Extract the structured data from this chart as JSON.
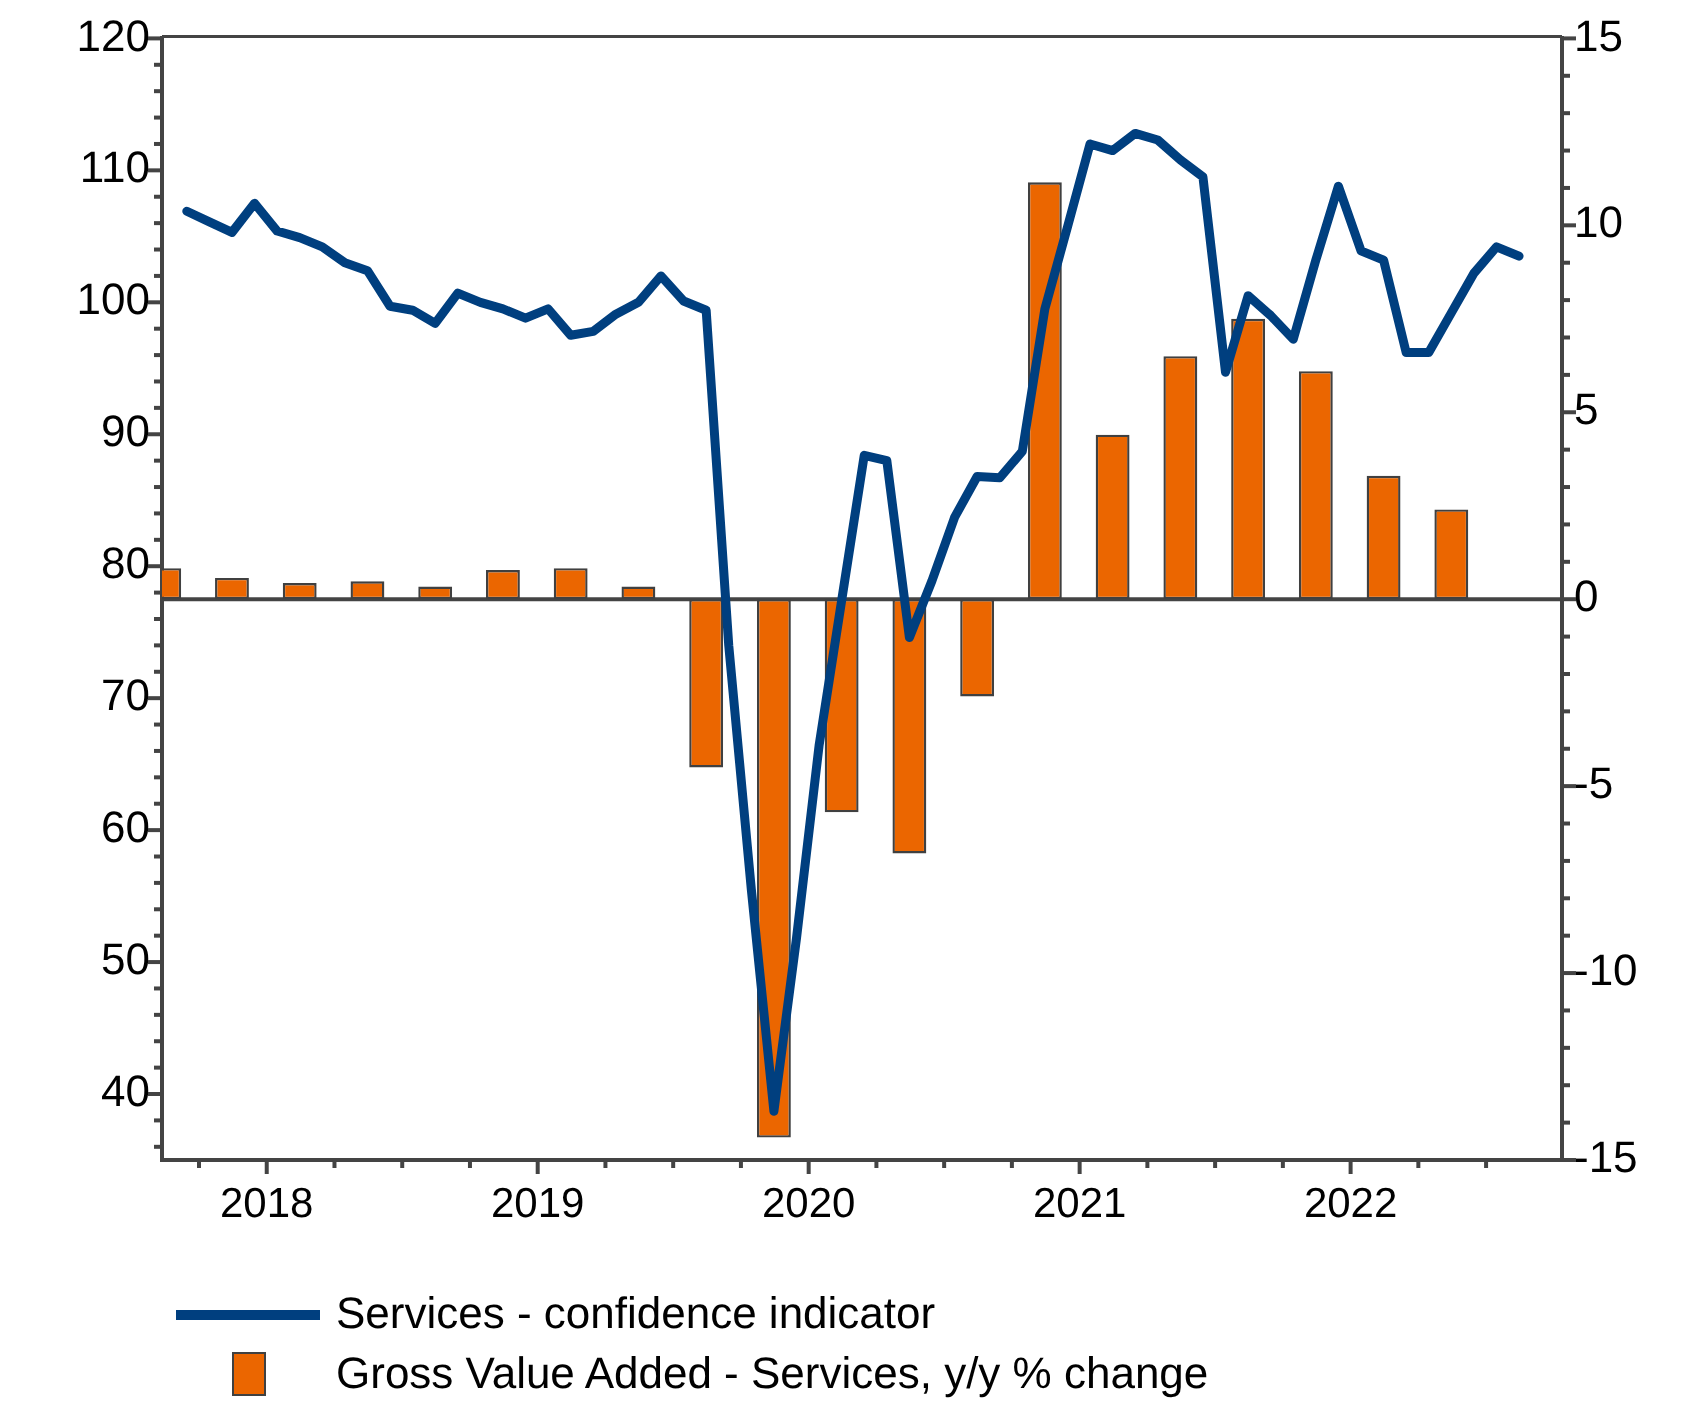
{
  "chart_data": {
    "type": "bar",
    "xlim": [
      "2018-02-12",
      "2023-04-12"
    ],
    "xticks": [
      {
        "value": "2018-04-01",
        "label": null
      },
      {
        "value": "2018-07-01",
        "label": "2018"
      },
      {
        "value": "2018-10-01",
        "label": null
      },
      {
        "value": "2019-01-01",
        "label": null
      },
      {
        "value": "2019-04-01",
        "label": null
      },
      {
        "value": "2019-07-01",
        "label": "2019"
      },
      {
        "value": "2019-10-01",
        "label": null
      },
      {
        "value": "2020-01-01",
        "label": null
      },
      {
        "value": "2020-04-01",
        "label": null
      },
      {
        "value": "2020-07-01",
        "label": "2020"
      },
      {
        "value": "2020-10-01",
        "label": null
      },
      {
        "value": "2021-01-01",
        "label": null
      },
      {
        "value": "2021-04-01",
        "label": null
      },
      {
        "value": "2021-07-01",
        "label": "2021"
      },
      {
        "value": "2021-10-01",
        "label": null
      },
      {
        "value": "2022-01-01",
        "label": null
      },
      {
        "value": "2022-04-01",
        "label": null
      },
      {
        "value": "2022-07-01",
        "label": "2022"
      },
      {
        "value": "2022-10-01",
        "label": null
      },
      {
        "value": "2023-01-01",
        "label": null
      }
    ],
    "ylim": [
      35,
      120
    ],
    "yticks": [
      {
        "value": 36,
        "label": null
      },
      {
        "value": 38,
        "label": null
      },
      40,
      {
        "value": 42,
        "label": null
      },
      {
        "value": 44,
        "label": null
      },
      {
        "value": 46,
        "label": null
      },
      {
        "value": 48,
        "label": null
      },
      50,
      {
        "value": 52,
        "label": null
      },
      {
        "value": 54,
        "label": null
      },
      {
        "value": 56,
        "label": null
      },
      {
        "value": 58,
        "label": null
      },
      60,
      {
        "value": 62,
        "label": null
      },
      {
        "value": 64,
        "label": null
      },
      {
        "value": 66,
        "label": null
      },
      {
        "value": 68,
        "label": null
      },
      70,
      {
        "value": 72,
        "label": null
      },
      {
        "value": 74,
        "label": null
      },
      {
        "value": 76,
        "label": null
      },
      {
        "value": 78,
        "label": null
      },
      80,
      {
        "value": 82,
        "label": null
      },
      {
        "value": 84,
        "label": null
      },
      {
        "value": 86,
        "label": null
      },
      {
        "value": 88,
        "label": null
      },
      90,
      {
        "value": 92,
        "label": null
      },
      {
        "value": 94,
        "label": null
      },
      {
        "value": 96,
        "label": null
      },
      {
        "value": 98,
        "label": null
      },
      100,
      {
        "value": 102,
        "label": null
      },
      {
        "value": 104,
        "label": null
      },
      {
        "value": 106,
        "label": null
      },
      {
        "value": 108,
        "label": null
      },
      110,
      {
        "value": 112,
        "label": null
      },
      {
        "value": 114,
        "label": null
      },
      {
        "value": 116,
        "label": null
      },
      {
        "value": 118,
        "label": null
      },
      120
    ],
    "y2lim": [
      -15,
      15
    ],
    "y2ticks": [
      -15,
      {
        "value": -14,
        "label": null
      },
      {
        "value": -13,
        "label": null
      },
      {
        "value": -12,
        "label": null
      },
      {
        "value": -11,
        "label": null
      },
      -10,
      {
        "value": -9,
        "label": null
      },
      {
        "value": -8,
        "label": null
      },
      {
        "value": -7,
        "label": null
      },
      {
        "value": -6,
        "label": null
      },
      -5,
      {
        "value": -4,
        "label": null
      },
      {
        "value": -3,
        "label": null
      },
      {
        "value": -2,
        "label": null
      },
      {
        "value": -1,
        "label": null
      },
      0,
      {
        "value": 1,
        "label": null
      },
      {
        "value": 2,
        "label": null
      },
      {
        "value": 3,
        "label": null
      },
      {
        "value": 4,
        "label": null
      },
      5,
      {
        "value": 6,
        "label": null
      },
      {
        "value": 7,
        "label": null
      },
      {
        "value": 8,
        "label": null
      },
      {
        "value": 9,
        "label": null
      },
      10,
      {
        "value": 11,
        "label": null
      },
      {
        "value": 12,
        "label": null
      },
      {
        "value": 13,
        "label": null
      },
      {
        "value": 14,
        "label": null
      },
      15
    ],
    "grid": false,
    "ref_lines": [
      {
        "axis": "y2",
        "value": 0,
        "color": "#444444",
        "line_style": "solid"
      }
    ],
    "legend": "bottom",
    "series": [
      {
        "name": "Services - confidence indicator",
        "type": "line",
        "color": "#003f7f",
        "line_style": "solid",
        "marker": "none",
        "x": [
          "2018-03-15",
          "2018-04-15",
          "2018-05-15",
          "2018-06-15",
          "2018-07-15",
          "2018-08-15",
          "2018-09-15",
          "2018-10-15",
          "2018-11-15",
          "2018-12-15",
          "2019-01-15",
          "2019-02-15",
          "2019-03-15",
          "2019-04-15",
          "2019-05-15",
          "2019-06-15",
          "2019-07-15",
          "2019-08-15",
          "2019-09-15",
          "2019-10-15",
          "2019-11-15",
          "2019-12-15",
          "2020-01-15",
          "2020-02-15",
          "2020-03-15",
          "2020-04-15",
          "2020-05-15",
          "2020-06-15",
          "2020-07-15",
          "2020-08-15",
          "2020-09-15",
          "2020-10-15",
          "2020-11-15",
          "2020-12-15",
          "2021-01-15",
          "2021-02-15",
          "2021-03-15",
          "2021-04-15",
          "2021-05-15",
          "2021-06-15",
          "2021-07-15",
          "2021-08-15",
          "2021-09-15",
          "2021-10-15",
          "2021-11-15",
          "2021-12-15",
          "2022-01-15",
          "2022-02-15",
          "2022-03-15",
          "2022-04-15",
          "2022-05-15",
          "2022-06-15",
          "2022-07-15",
          "2022-08-15",
          "2022-09-15",
          "2022-10-15",
          "2022-11-15",
          "2022-12-15",
          "2023-01-15",
          "2023-02-15"
        ],
        "values": [
          106.9,
          106.1,
          105.3,
          107.5,
          105.4,
          104.9,
          104.2,
          103.0,
          102.4,
          99.7,
          99.4,
          98.4,
          100.7,
          100.0,
          99.5,
          98.8,
          99.5,
          97.5,
          97.8,
          99.1,
          100.0,
          102.0,
          100.1,
          99.4,
          74.0,
          55.5,
          38.7,
          51.8,
          66.4,
          77.4,
          88.4,
          88.0,
          74.6,
          78.9,
          83.7,
          86.8,
          86.7,
          88.7,
          99.5,
          105.7,
          112.0,
          111.5,
          112.8,
          112.3,
          110.8,
          109.5,
          94.7,
          100.5,
          99.0,
          97.2,
          103.2,
          108.8,
          103.9,
          103.2,
          96.2,
          96.2,
          99.2,
          102.2,
          104.2,
          103.5
        ]
      },
      {
        "name": "Gross Value Added - Services, y/y % change",
        "axis": "y2",
        "color": "#eb6600",
        "x": [
          "2018-02-15",
          "2018-05-15",
          "2018-08-15",
          "2018-11-15",
          "2019-02-15",
          "2019-05-15",
          "2019-08-15",
          "2019-11-15",
          "2020-02-15",
          "2020-05-15",
          "2020-08-15",
          "2020-11-15",
          "2021-02-15",
          "2021-05-15",
          "2021-08-15",
          "2021-11-15",
          "2022-02-15",
          "2022-05-15",
          "2022-08-15",
          "2022-11-15"
        ],
        "values": [
          0.83,
          0.57,
          0.43,
          0.48,
          0.34,
          0.78,
          0.83,
          0.34,
          -4.5,
          -14.4,
          -5.7,
          -6.8,
          -2.6,
          11.15,
          4.4,
          6.5,
          7.5,
          6.1,
          3.3,
          2.4
        ]
      }
    ]
  }
}
